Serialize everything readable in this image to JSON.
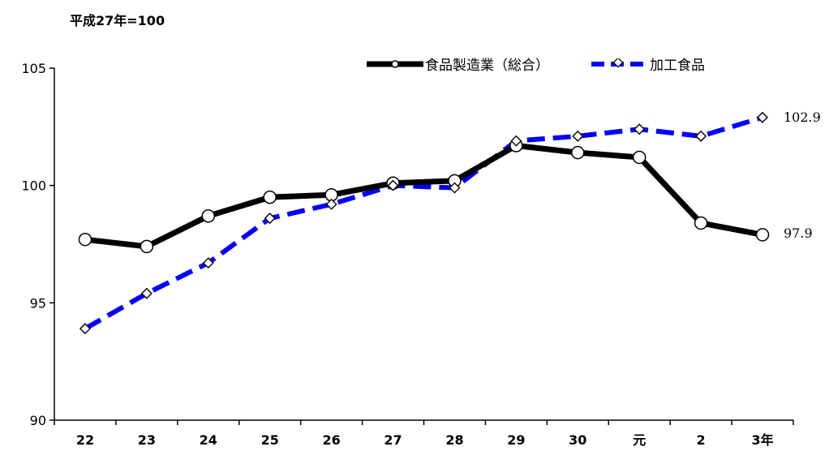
{
  "unit_note": "平成27年=100",
  "colors": {
    "series1": "#000000",
    "series2": "#0000ff",
    "marker_fill": "#ffffff"
  },
  "end_labels": {
    "series1": "97.9",
    "series2": "102.9"
  },
  "chart_data": {
    "type": "line",
    "title": "",
    "xlabel": "",
    "ylabel": "",
    "categories": [
      "22",
      "23",
      "24",
      "25",
      "26",
      "27",
      "28",
      "29",
      "30",
      "元",
      "2",
      "3年"
    ],
    "ylim": [
      90,
      105
    ],
    "yticks": [
      "90",
      "95",
      "100",
      "105"
    ],
    "legend_position": "top-right",
    "series": [
      {
        "name": "食品製造業（総合）",
        "style": "solid",
        "marker": "circle",
        "values": [
          97.7,
          97.4,
          98.7,
          99.5,
          99.6,
          100.1,
          100.2,
          101.7,
          101.4,
          101.2,
          98.4,
          97.9
        ]
      },
      {
        "name": "加工食品",
        "style": "dashed",
        "marker": "diamond",
        "values": [
          93.9,
          95.4,
          96.7,
          98.6,
          99.2,
          100.0,
          99.9,
          101.9,
          102.1,
          102.4,
          102.1,
          102.9
        ]
      }
    ]
  }
}
